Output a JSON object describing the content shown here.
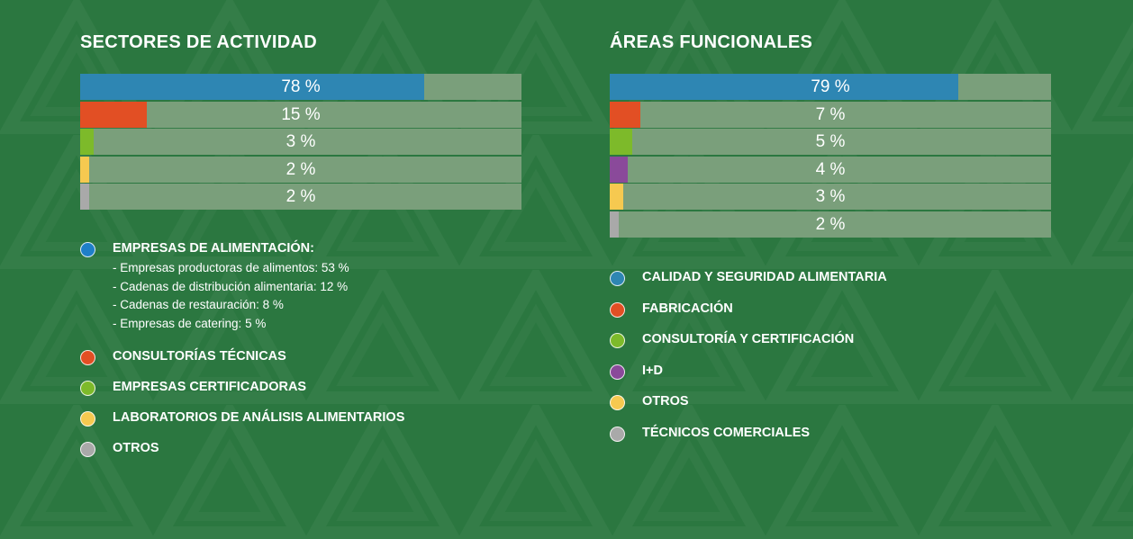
{
  "colors": {
    "background": "#2b7740",
    "track": "#7a9f7b",
    "blue": "#2e86b3",
    "orange": "#e24f24",
    "green": "#7dba2a",
    "yellow": "#f6c950",
    "gray": "#a9a9a9",
    "purple": "#8a4a9a"
  },
  "sectores": {
    "title": "SECTORES DE ACTIVIDAD",
    "legend": [
      {
        "label": "EMPRESAS DE ALIMENTACIÓN:",
        "color": "#1f7fc8",
        "sub": [
          "- Empresas productoras de alimentos: 53 %",
          "- Cadenas de distribución alimentaria: 12 %",
          "- Cadenas de restauración: 8 %",
          "- Empresas de catering: 5 %"
        ]
      },
      {
        "label": "CONSULTORÍAS TÉCNICAS",
        "color": "#e24f24"
      },
      {
        "label": "EMPRESAS CERTIFICADORAS",
        "color": "#7dba2a"
      },
      {
        "label": "LABORATORIOS DE ANÁLISIS ALIMENTARIOS",
        "color": "#f6c950"
      },
      {
        "label": "OTROS",
        "color": "#a9a9a9"
      }
    ]
  },
  "areas": {
    "title": "ÁREAS FUNCIONALES",
    "legend": [
      {
        "label": "CALIDAD Y SEGURIDAD ALIMENTARIA",
        "color": "#2e86b3"
      },
      {
        "label": "FABRICACIÓN",
        "color": "#e24f24"
      },
      {
        "label": "CONSULTORÍA Y CERTIFICACIÓN",
        "color": "#7dba2a"
      },
      {
        "label": "I+D",
        "color": "#8a4a9a"
      },
      {
        "label": "OTROS",
        "color": "#f6c950"
      },
      {
        "label": "TÉCNICOS COMERCIALES",
        "color": "#a9a9a9"
      }
    ]
  },
  "chart_data": [
    {
      "type": "bar",
      "orientation": "horizontal",
      "title": "SECTORES DE ACTIVIDAD",
      "categories": [
        "EMPRESAS DE ALIMENTACIÓN:",
        "CONSULTORÍAS TÉCNICAS",
        "EMPRESAS CERTIFICADORAS",
        "LABORATORIOS DE ANÁLISIS ALIMENTARIOS",
        "OTROS"
      ],
      "values": [
        78,
        15,
        3,
        2,
        2
      ],
      "labels": [
        "78 %",
        "15 %",
        "3 %",
        "2 %",
        "2 %"
      ],
      "colors": [
        "#2e86b3",
        "#e24f24",
        "#7dba2a",
        "#f6c950",
        "#a9a9a9"
      ],
      "xlim": [
        0,
        100
      ],
      "grid": false
    },
    {
      "type": "bar",
      "orientation": "horizontal",
      "title": "ÁREAS FUNCIONALES",
      "categories": [
        "CALIDAD Y SEGURIDAD ALIMENTARIA",
        "FABRICACIÓN",
        "CONSULTORÍA Y CERTIFICACIÓN",
        "I+D",
        "OTROS",
        "TÉCNICOS COMERCIALES"
      ],
      "values": [
        79,
        7,
        5,
        4,
        3,
        2
      ],
      "labels": [
        "79 %",
        "7 %",
        "5 %",
        "4 %",
        "3 %",
        "2 %"
      ],
      "colors": [
        "#2e86b3",
        "#e24f24",
        "#7dba2a",
        "#8a4a9a",
        "#f6c950",
        "#a9a9a9"
      ],
      "xlim": [
        0,
        100
      ],
      "grid": false
    }
  ]
}
